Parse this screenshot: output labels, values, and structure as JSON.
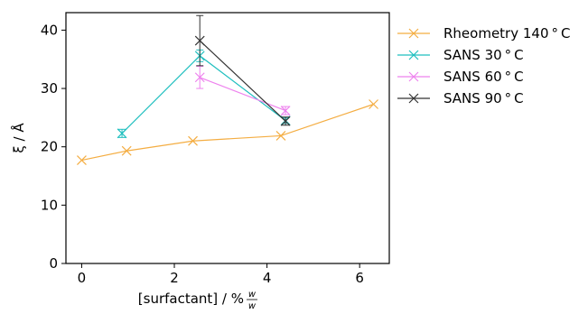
{
  "chart_data": {
    "type": "line",
    "title": "",
    "xlabel": "[surfactant] / %",
    "xlabel_frac_num": "w",
    "xlabel_frac_den": "w",
    "ylabel": "ξ / Å",
    "xlim": [
      -0.34,
      6.64
    ],
    "ylim": [
      0,
      43
    ],
    "xticks": [
      0,
      2,
      4,
      6
    ],
    "yticks": [
      0,
      10,
      20,
      30,
      40
    ],
    "grid": false,
    "legend_position": "outside-right-top",
    "series": [
      {
        "name": "Rheometry 140 ° C",
        "color": "#f4ad42",
        "marker": "x",
        "points": [
          {
            "x": 0.0,
            "y": 17.7
          },
          {
            "x": 0.97,
            "y": 19.3
          },
          {
            "x": 2.4,
            "y": 21.0
          },
          {
            "x": 4.3,
            "y": 21.9
          },
          {
            "x": 6.3,
            "y": 27.3
          }
        ]
      },
      {
        "name": "SANS 30 ° C",
        "color": "#1fbfbf",
        "marker": "x",
        "points": [
          {
            "x": 0.87,
            "y": 22.3,
            "err": 0.7
          },
          {
            "x": 2.55,
            "y": 35.6,
            "err": 1.0
          },
          {
            "x": 4.4,
            "y": 24.5,
            "err": 0.5
          }
        ]
      },
      {
        "name": "SANS 60 ° C",
        "color": "#ee82ee",
        "marker": "x",
        "points": [
          {
            "x": 2.55,
            "y": 31.9,
            "err": 1.9
          },
          {
            "x": 4.4,
            "y": 26.2,
            "err": 0.7
          }
        ]
      },
      {
        "name": "SANS 90 ° C",
        "color": "#333333",
        "marker": "x",
        "points": [
          {
            "x": 2.55,
            "y": 38.2,
            "err": 4.3
          },
          {
            "x": 4.4,
            "y": 24.4,
            "err": 0.7
          }
        ]
      }
    ]
  }
}
